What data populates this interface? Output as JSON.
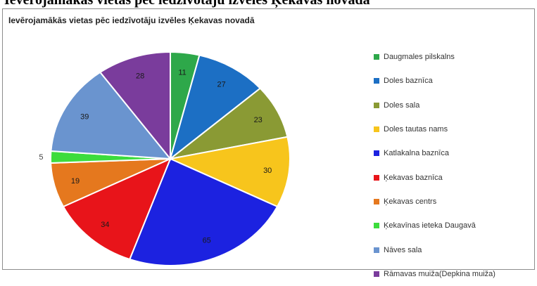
{
  "header_strip": {
    "text": "Ievērojamākās vietas pēc iedzīvotāju izvēles Ķekavas novadā"
  },
  "chart_data": {
    "type": "pie",
    "title": "Ievērojamākās vietas pēc iedzīvotāju izvēles Ķekavas  novadā",
    "legend_position": "right",
    "slices": [
      {
        "label": "Daugmales pilskalns",
        "value": 11,
        "color": "#2ea84a"
      },
      {
        "label": "Doles baznīca",
        "value": 27,
        "color": "#1c6fc4"
      },
      {
        "label": "Doles sala",
        "value": 23,
        "color": "#8a9a34"
      },
      {
        "label": "Doles tautas nams",
        "value": 30,
        "color": "#f7c51c"
      },
      {
        "label": "Katlakalna baznīca",
        "value": 65,
        "color": "#1c22e0"
      },
      {
        "label": "Ķekavas baznīca",
        "value": 34,
        "color": "#e8141a"
      },
      {
        "label": "Ķekavas centrs",
        "value": 19,
        "color": "#e5781e"
      },
      {
        "label": "Ķekavīnas ieteka Daugavā",
        "value": 5,
        "color": "#3cdc3c"
      },
      {
        "label": "Nāves sala",
        "value": 39,
        "color": "#6a94cf"
      },
      {
        "label": "Rāmavas muiža(Depkina muiža)",
        "value": 28,
        "color": "#7a3c9c"
      }
    ]
  }
}
